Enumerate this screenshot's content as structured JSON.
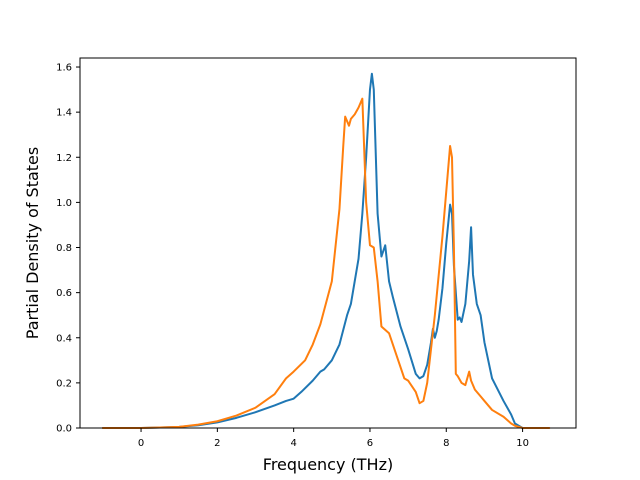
{
  "chart_data": {
    "type": "line",
    "title": "",
    "xlabel": "Frequency (THz)",
    "ylabel": "Partial Density of States",
    "xlim": [
      -1.6,
      11.4
    ],
    "ylim": [
      0.0,
      1.64
    ],
    "xticks": [
      0,
      2,
      4,
      6,
      8,
      10
    ],
    "yticks": [
      0.0,
      0.2,
      0.4,
      0.6,
      0.8,
      1.0,
      1.2,
      1.4,
      1.6
    ],
    "xtick_labels": [
      "0",
      "2",
      "4",
      "6",
      "8",
      "10"
    ],
    "ytick_labels": [
      "0.0",
      "0.2",
      "0.4",
      "0.6",
      "0.8",
      "1.0",
      "1.2",
      "1.4",
      "1.6"
    ],
    "grid": false,
    "series": [
      {
        "color": "#1f77b4",
        "x": [
          -1.0,
          0.0,
          0.5,
          1.0,
          1.5,
          2.0,
          2.5,
          3.0,
          3.5,
          3.8,
          4.0,
          4.2,
          4.5,
          4.7,
          4.8,
          5.0,
          5.2,
          5.4,
          5.5,
          5.6,
          5.7,
          5.8,
          5.9,
          6.0,
          6.05,
          6.1,
          6.2,
          6.3,
          6.4,
          6.5,
          6.6,
          6.8,
          7.0,
          7.2,
          7.3,
          7.4,
          7.5,
          7.6,
          7.65,
          7.7,
          7.75,
          7.8,
          7.9,
          8.0,
          8.1,
          8.15,
          8.2,
          8.3,
          8.35,
          8.4,
          8.5,
          8.6,
          8.65,
          8.7,
          8.8,
          8.9,
          9.0,
          9.2,
          9.5,
          9.7,
          9.8,
          10.0
        ],
        "y": [
          0.0,
          0.0,
          0.002,
          0.005,
          0.012,
          0.025,
          0.045,
          0.07,
          0.1,
          0.12,
          0.13,
          0.16,
          0.21,
          0.25,
          0.26,
          0.3,
          0.37,
          0.5,
          0.55,
          0.65,
          0.75,
          0.95,
          1.2,
          1.5,
          1.57,
          1.5,
          0.95,
          0.76,
          0.81,
          0.65,
          0.58,
          0.45,
          0.35,
          0.24,
          0.22,
          0.23,
          0.28,
          0.38,
          0.44,
          0.4,
          0.43,
          0.48,
          0.62,
          0.82,
          0.99,
          0.95,
          0.72,
          0.48,
          0.49,
          0.47,
          0.55,
          0.74,
          0.89,
          0.68,
          0.55,
          0.5,
          0.38,
          0.22,
          0.12,
          0.06,
          0.02,
          0.0
        ]
      },
      {
        "color": "#ff7f0e",
        "x": [
          -1.0,
          0.0,
          0.5,
          1.0,
          1.5,
          2.0,
          2.5,
          3.0,
          3.5,
          3.8,
          4.0,
          4.3,
          4.5,
          4.7,
          5.0,
          5.2,
          5.3,
          5.35,
          5.45,
          5.5,
          5.6,
          5.7,
          5.8,
          5.9,
          6.0,
          6.1,
          6.2,
          6.3,
          6.5,
          6.7,
          6.9,
          7.0,
          7.2,
          7.3,
          7.4,
          7.5,
          7.7,
          7.9,
          8.0,
          8.1,
          8.15,
          8.2,
          8.25,
          8.3,
          8.4,
          8.5,
          8.6,
          8.65,
          8.75,
          8.9,
          9.0,
          9.2,
          9.5,
          9.7,
          9.8,
          10.0,
          10.7
        ],
        "y": [
          0.0,
          0.0,
          0.002,
          0.005,
          0.015,
          0.03,
          0.055,
          0.09,
          0.15,
          0.22,
          0.25,
          0.3,
          0.37,
          0.46,
          0.65,
          0.97,
          1.25,
          1.38,
          1.34,
          1.37,
          1.39,
          1.42,
          1.46,
          1.0,
          0.81,
          0.8,
          0.65,
          0.45,
          0.42,
          0.32,
          0.22,
          0.21,
          0.16,
          0.11,
          0.12,
          0.2,
          0.5,
          0.85,
          1.05,
          1.25,
          1.2,
          0.8,
          0.24,
          0.23,
          0.2,
          0.19,
          0.25,
          0.21,
          0.17,
          0.14,
          0.12,
          0.08,
          0.05,
          0.02,
          0.01,
          0.0,
          0.0
        ]
      }
    ]
  }
}
